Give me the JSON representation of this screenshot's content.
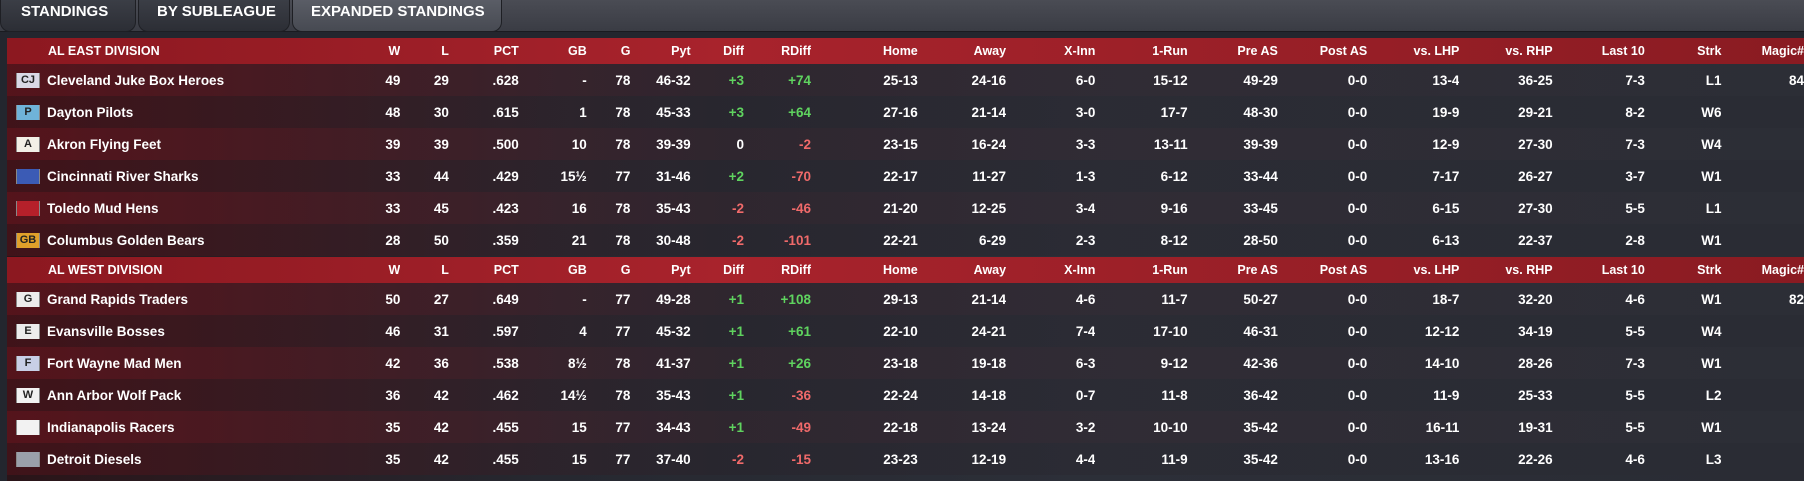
{
  "tabs": [
    {
      "label": "STANDINGS"
    },
    {
      "label": "BY SUBLEAGUE"
    },
    {
      "label": "EXPANDED STANDINGS"
    }
  ],
  "columns": [
    "W",
    "L",
    "PCT",
    "GB",
    "G",
    "Pyt",
    "Diff",
    "RDiff",
    "Home",
    "Away",
    "X-Inn",
    "1-Run",
    "Pre AS",
    "Post AS",
    "vs. LHP",
    "vs. RHP",
    "Last 10",
    "Strk",
    "Magic#"
  ],
  "divisions": [
    {
      "name": "AL EAST DIVISION",
      "teams": [
        {
          "logo": "CJ",
          "logo_color": "#d9d9e6",
          "name": "Cleveland Juke Box Heroes",
          "w": "49",
          "l": "29",
          "pct": ".628",
          "gb": "-",
          "g": "78",
          "pyt": "46-32",
          "diff": "+3",
          "rdiff": "+74",
          "home": "25-13",
          "away": "24-16",
          "xinn": "6-0",
          "onerun": "15-12",
          "preas": "49-29",
          "postas": "0-0",
          "vlhp": "13-4",
          "vrhp": "36-25",
          "last10": "7-3",
          "strk": "L1",
          "magic": "84"
        },
        {
          "logo": "P",
          "logo_color": "#6fb3d9",
          "name": "Dayton Pilots",
          "w": "48",
          "l": "30",
          "pct": ".615",
          "gb": "1",
          "g": "78",
          "pyt": "45-33",
          "diff": "+3",
          "rdiff": "+64",
          "home": "27-16",
          "away": "21-14",
          "xinn": "3-0",
          "onerun": "17-7",
          "preas": "48-30",
          "postas": "0-0",
          "vlhp": "19-9",
          "vrhp": "29-21",
          "last10": "8-2",
          "strk": "W6",
          "magic": ""
        },
        {
          "logo": "A",
          "logo_color": "#f2efe6",
          "name": "Akron  Flying Feet",
          "w": "39",
          "l": "39",
          "pct": ".500",
          "gb": "10",
          "g": "78",
          "pyt": "39-39",
          "diff": "0",
          "rdiff": "-2",
          "home": "23-15",
          "away": "16-24",
          "xinn": "3-3",
          "onerun": "13-11",
          "preas": "39-39",
          "postas": "0-0",
          "vlhp": "12-9",
          "vrhp": "27-30",
          "last10": "7-3",
          "strk": "W4",
          "magic": ""
        },
        {
          "logo": "",
          "logo_color": "#3b5bb5",
          "name": "Cincinnati River Sharks",
          "w": "33",
          "l": "44",
          "pct": ".429",
          "gb": "15½",
          "g": "77",
          "pyt": "31-46",
          "diff": "+2",
          "rdiff": "-70",
          "home": "22-17",
          "away": "11-27",
          "xinn": "1-3",
          "onerun": "6-12",
          "preas": "33-44",
          "postas": "0-0",
          "vlhp": "7-17",
          "vrhp": "26-27",
          "last10": "3-7",
          "strk": "W1",
          "magic": ""
        },
        {
          "logo": "",
          "logo_color": "#b5202a",
          "name": "Toledo  Mud Hens",
          "w": "33",
          "l": "45",
          "pct": ".423",
          "gb": "16",
          "g": "78",
          "pyt": "35-43",
          "diff": "-2",
          "rdiff": "-46",
          "home": "21-20",
          "away": "12-25",
          "xinn": "3-4",
          "onerun": "9-16",
          "preas": "33-45",
          "postas": "0-0",
          "vlhp": "6-15",
          "vrhp": "27-30",
          "last10": "5-5",
          "strk": "L1",
          "magic": ""
        },
        {
          "logo": "GB",
          "logo_color": "#e0a02a",
          "name": "Columbus Golden Bears",
          "w": "28",
          "l": "50",
          "pct": ".359",
          "gb": "21",
          "g": "78",
          "pyt": "30-48",
          "diff": "-2",
          "rdiff": "-101",
          "home": "22-21",
          "away": "6-29",
          "xinn": "2-3",
          "onerun": "8-12",
          "preas": "28-50",
          "postas": "0-0",
          "vlhp": "6-13",
          "vrhp": "22-37",
          "last10": "2-8",
          "strk": "W1",
          "magic": ""
        }
      ]
    },
    {
      "name": "AL WEST DIVISION",
      "teams": [
        {
          "logo": "G",
          "logo_color": "#ececec",
          "name": "Grand Rapids Traders",
          "w": "50",
          "l": "27",
          "pct": ".649",
          "gb": "-",
          "g": "77",
          "pyt": "49-28",
          "diff": "+1",
          "rdiff": "+108",
          "home": "29-13",
          "away": "21-14",
          "xinn": "4-6",
          "onerun": "11-7",
          "preas": "50-27",
          "postas": "0-0",
          "vlhp": "18-7",
          "vrhp": "32-20",
          "last10": "4-6",
          "strk": "W1",
          "magic": "82"
        },
        {
          "logo": "E",
          "logo_color": "#ececec",
          "name": "Evansville Bosses",
          "w": "46",
          "l": "31",
          "pct": ".597",
          "gb": "4",
          "g": "77",
          "pyt": "45-32",
          "diff": "+1",
          "rdiff": "+61",
          "home": "22-10",
          "away": "24-21",
          "xinn": "7-4",
          "onerun": "17-10",
          "preas": "46-31",
          "postas": "0-0",
          "vlhp": "12-12",
          "vrhp": "34-19",
          "last10": "5-5",
          "strk": "W4",
          "magic": ""
        },
        {
          "logo": "F",
          "logo_color": "#c8cfe6",
          "name": "Fort Wayne Mad Men",
          "w": "42",
          "l": "36",
          "pct": ".538",
          "gb": "8½",
          "g": "78",
          "pyt": "41-37",
          "diff": "+1",
          "rdiff": "+26",
          "home": "23-18",
          "away": "19-18",
          "xinn": "6-3",
          "onerun": "9-12",
          "preas": "42-36",
          "postas": "0-0",
          "vlhp": "14-10",
          "vrhp": "28-26",
          "last10": "7-3",
          "strk": "W1",
          "magic": ""
        },
        {
          "logo": "W",
          "logo_color": "#f2f2f2",
          "name": "Ann Arbor Wolf Pack",
          "w": "36",
          "l": "42",
          "pct": ".462",
          "gb": "14½",
          "g": "78",
          "pyt": "35-43",
          "diff": "+1",
          "rdiff": "-36",
          "home": "22-24",
          "away": "14-18",
          "xinn": "0-7",
          "onerun": "11-8",
          "preas": "36-42",
          "postas": "0-0",
          "vlhp": "11-9",
          "vrhp": "25-33",
          "last10": "5-5",
          "strk": "L2",
          "magic": ""
        },
        {
          "logo": "",
          "logo_color": "#f2f2f2",
          "name": "Indianapolis Racers",
          "w": "35",
          "l": "42",
          "pct": ".455",
          "gb": "15",
          "g": "77",
          "pyt": "34-43",
          "diff": "+1",
          "rdiff": "-49",
          "home": "22-18",
          "away": "13-24",
          "xinn": "3-2",
          "onerun": "10-10",
          "preas": "35-42",
          "postas": "0-0",
          "vlhp": "16-11",
          "vrhp": "19-31",
          "last10": "5-5",
          "strk": "W1",
          "magic": ""
        },
        {
          "logo": "",
          "logo_color": "#9aa0aa",
          "name": "Detroit Diesels",
          "w": "35",
          "l": "42",
          "pct": ".455",
          "gb": "15",
          "g": "77",
          "pyt": "37-40",
          "diff": "-2",
          "rdiff": "-15",
          "home": "23-23",
          "away": "12-19",
          "xinn": "4-4",
          "onerun": "11-9",
          "preas": "35-42",
          "postas": "0-0",
          "vlhp": "13-16",
          "vrhp": "22-26",
          "last10": "4-6",
          "strk": "L3",
          "magic": ""
        }
      ]
    }
  ]
}
